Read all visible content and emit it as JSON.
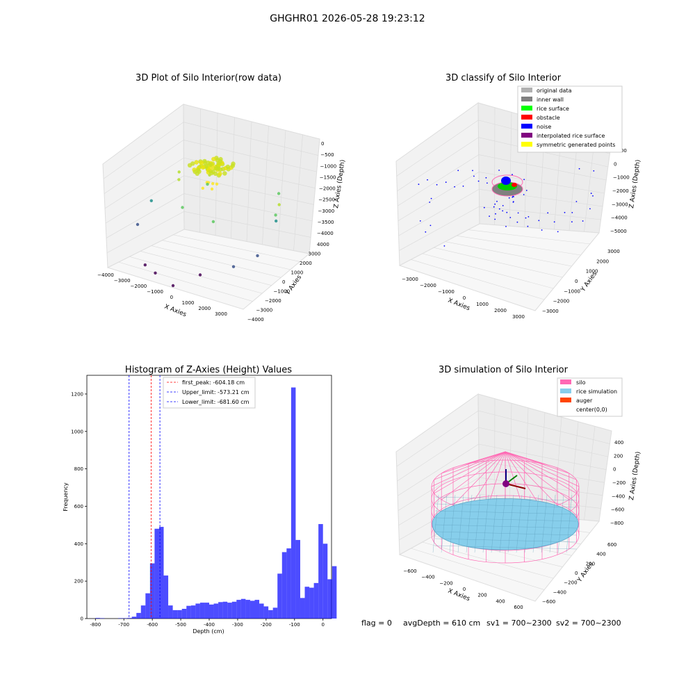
{
  "figure": {
    "title": "GHGHR01 2026-05-28 19:23:12",
    "footer": {
      "flag": "flag = 0",
      "avg_depth": "avgDepth = 610 cm",
      "sv1": "sv1 = 700~2300",
      "sv2": "sv2 = 700~2300"
    }
  },
  "chart_data": [
    {
      "type": "scatter",
      "projection": "3d",
      "title": "3D Plot of Silo Interior(row data)",
      "xlabel": "X Axies",
      "ylabel": "Y Axies",
      "zlabel": "Z Axies (Depth)",
      "x_ticks": [
        "−4000",
        "−3000",
        "−2000",
        "−1000",
        "0",
        "1000",
        "2000",
        "3000"
      ],
      "y_ticks": [
        "−4000",
        "−3000",
        "−2000",
        "−1000",
        "0",
        "1000",
        "2000",
        "3000",
        "4000"
      ],
      "z_ticks": [
        "0",
        "−500",
        "−1000",
        "−1500",
        "−2000",
        "−2500",
        "−3000",
        "−3500",
        "−4000"
      ],
      "colormap": "viridis",
      "points": [
        {
          "x": 0,
          "y": 0,
          "z": -900
        },
        {
          "x": 150,
          "y": 100,
          "z": -950
        },
        {
          "x": -200,
          "y": 150,
          "z": -1000
        },
        {
          "x": 300,
          "y": -150,
          "z": -1050
        },
        {
          "x": -150,
          "y": -200,
          "z": -1100
        },
        {
          "x": 250,
          "y": 250,
          "z": -1000
        },
        {
          "x": -2500,
          "y": 1200,
          "z": -1500
        },
        {
          "x": -2200,
          "y": 800,
          "z": -1600
        },
        {
          "x": 2600,
          "y": 1500,
          "z": -1800
        },
        {
          "x": 2800,
          "y": 1000,
          "z": -2000
        },
        {
          "x": -1500,
          "y": 2000,
          "z": -1700
        },
        {
          "x": 1800,
          "y": 2500,
          "z": -1900
        },
        {
          "x": -1000,
          "y": -500,
          "z": -2000
        },
        {
          "x": 800,
          "y": -700,
          "z": -2100
        },
        {
          "x": -3200,
          "y": 200,
          "z": -2500
        },
        {
          "x": -3000,
          "y": -1000,
          "z": -3000
        },
        {
          "x": 2500,
          "y": -1500,
          "z": -3300
        },
        {
          "x": 1500,
          "y": -2500,
          "z": -3500
        },
        {
          "x": -500,
          "y": -3000,
          "z": -3700
        },
        {
          "x": 600,
          "y": -3200,
          "z": -3900
        },
        {
          "x": -1200,
          "y": -2800,
          "z": -3600
        },
        {
          "x": 3000,
          "y": -500,
          "z": -3100
        },
        {
          "x": 2200,
          "y": 1800,
          "z": -2700
        },
        {
          "x": -2000,
          "y": 2500,
          "z": -2400
        }
      ]
    },
    {
      "type": "scatter",
      "projection": "3d",
      "title": "3D classify of Silo Interior",
      "xlabel": "X Axies",
      "ylabel": "Y Axies",
      "zlabel": "Z Axies (Depth)",
      "x_ticks": [
        "−3000",
        "−2000",
        "−1000",
        "0",
        "1000",
        "2000",
        "3000"
      ],
      "y_ticks": [
        "−3000",
        "−2000",
        "−1000",
        "0",
        "1000",
        "2000",
        "3000"
      ],
      "z_ticks": [
        "1000",
        "0",
        "−1000",
        "−2000",
        "−3000",
        "−4000",
        "−5000"
      ],
      "legend_position": "top-right",
      "legend": [
        {
          "label": "original data",
          "color": "#b0b0b0"
        },
        {
          "label": "inner wall",
          "color": "#808080"
        },
        {
          "label": "rice surface",
          "color": "#00ff00"
        },
        {
          "label": "obstacle",
          "color": "#ff0000"
        },
        {
          "label": "noise",
          "color": "#0000ff"
        },
        {
          "label": "interpolated rice surface",
          "color": "#800080"
        },
        {
          "label": "symmetric generated points",
          "color": "#ffff00"
        }
      ]
    },
    {
      "type": "bar",
      "title": "Histogram of Z-Axies (Height) Values",
      "xlabel": "Depth (cm)",
      "ylabel": "Frequency",
      "xlim": [
        -830,
        30
      ],
      "ylim": [
        0,
        1300
      ],
      "x_ticks": [
        -800,
        -700,
        -600,
        -500,
        -400,
        -300,
        -200,
        -100,
        0
      ],
      "y_ticks": [
        0,
        200,
        400,
        600,
        800,
        1000,
        1200
      ],
      "bar_color": "#0000ff",
      "bin_edges_start": -800,
      "bin_width": 16,
      "values": [
        3,
        2,
        0,
        0,
        0,
        2,
        2,
        3,
        10,
        30,
        70,
        135,
        295,
        480,
        490,
        230,
        70,
        45,
        45,
        52,
        68,
        70,
        80,
        85,
        85,
        75,
        80,
        88,
        90,
        85,
        90,
        100,
        105,
        100,
        95,
        100,
        80,
        65,
        45,
        58,
        240,
        355,
        375,
        1235,
        420,
        110,
        170,
        165,
        190,
        505,
        400,
        210,
        280
      ],
      "vlines": [
        {
          "label": "first_peak: -604.18 cm",
          "x": -604.18,
          "color": "#ff0000"
        },
        {
          "label": "Upper_limit: -573.21 cm",
          "x": -573.21,
          "color": "#0000ff"
        },
        {
          "label": "Lower_limit: -681.60 cm",
          "x": -681.6,
          "color": "#0000ff"
        }
      ],
      "legend_position": "top-center"
    },
    {
      "type": "surface",
      "projection": "3d",
      "title": "3D simulation of Silo Interior",
      "xlabel": "X Axies",
      "ylabel": "Y Axies",
      "zlabel": "Z Axies (Depth)",
      "x_ticks": [
        "−600",
        "−400",
        "−200",
        "0",
        "200",
        "400",
        "600"
      ],
      "y_ticks": [
        "−600",
        "−400",
        "−200",
        "0",
        "200",
        "400",
        "600"
      ],
      "z_ticks": [
        "400",
        "200",
        "0",
        "−200",
        "−400",
        "−600",
        "−800"
      ],
      "legend_position": "top-right",
      "legend": [
        {
          "label": "silo",
          "color": "#ff69b4"
        },
        {
          "label": "rice simulation",
          "color": "#87ceeb"
        },
        {
          "label": "auger",
          "color": "#ff4500"
        },
        {
          "label": "center(0,0)",
          "color": "#ffffff"
        }
      ]
    }
  ]
}
